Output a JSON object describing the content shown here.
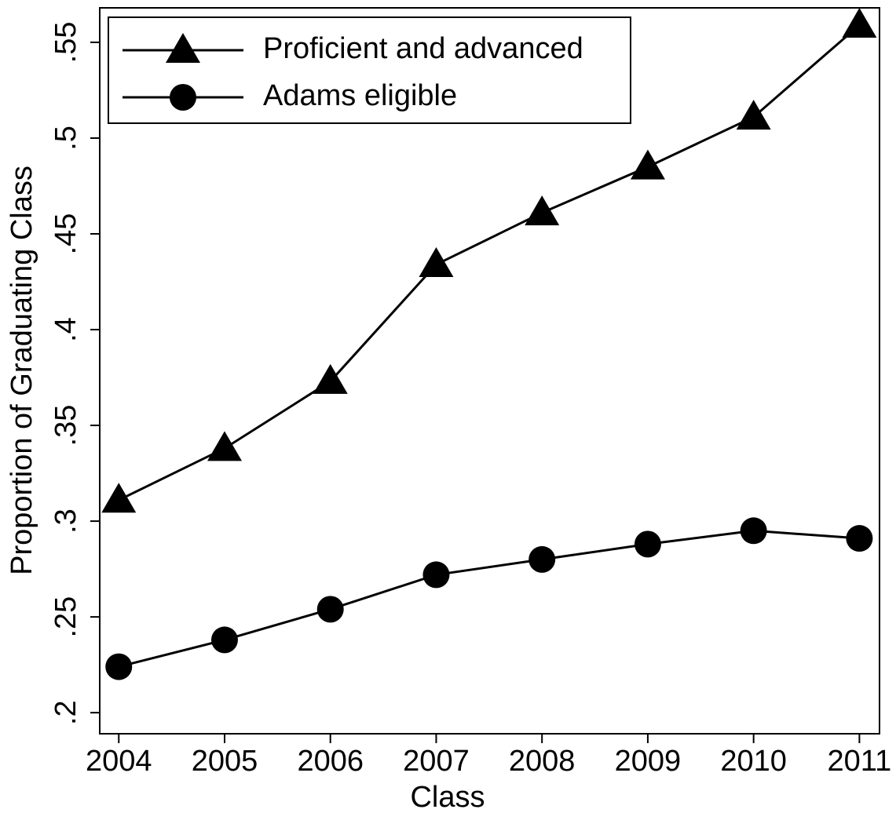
{
  "chart_data": {
    "type": "line",
    "x_label": "Class",
    "y_label": "Proportion of Graduating Class",
    "x": [
      2004,
      2005,
      2006,
      2007,
      2008,
      2009,
      2010,
      2011
    ],
    "series": [
      {
        "name": "Proficient and advanced",
        "color": "#000000",
        "marker": "triangle",
        "values": [
          0.311,
          0.338,
          0.373,
          0.434,
          0.461,
          0.485,
          0.511,
          0.559
        ]
      },
      {
        "name": "Adams eligible",
        "color": "#000000",
        "marker": "circle",
        "values": [
          0.224,
          0.238,
          0.254,
          0.272,
          0.28,
          0.288,
          0.295,
          0.291
        ]
      }
    ],
    "xlim": [
      2003.82,
      2011.19
    ],
    "ylim": [
      0.189,
      0.568
    ],
    "xticks": [
      2004,
      2005,
      2006,
      2007,
      2008,
      2009,
      2010,
      2011
    ],
    "yticks": [
      {
        "value": 0.2,
        "label": ".2"
      },
      {
        "value": 0.25,
        "label": ".25"
      },
      {
        "value": 0.3,
        "label": ".3"
      },
      {
        "value": 0.35,
        "label": ".35"
      },
      {
        "value": 0.4,
        "label": ".4"
      },
      {
        "value": 0.45,
        "label": ".45"
      },
      {
        "value": 0.5,
        "label": ".5"
      },
      {
        "value": 0.55,
        "label": ".55"
      }
    ],
    "grid": false,
    "legend_position": "upper-left"
  }
}
